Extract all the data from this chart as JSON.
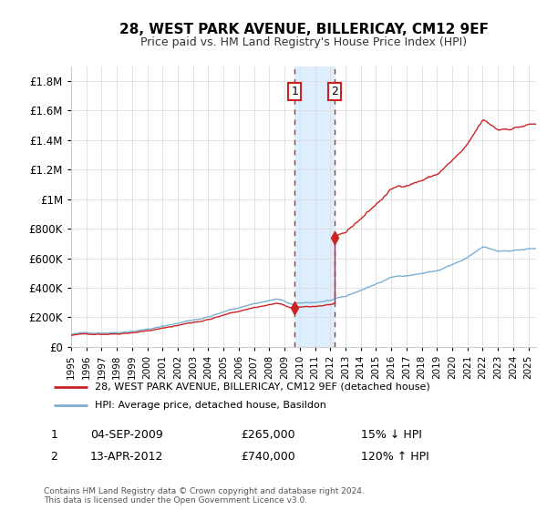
{
  "title": "28, WEST PARK AVENUE, BILLERICAY, CM12 9EF",
  "subtitle": "Price paid vs. HM Land Registry's House Price Index (HPI)",
  "legend_line1": "28, WEST PARK AVENUE, BILLERICAY, CM12 9EF (detached house)",
  "legend_line2": "HPI: Average price, detached house, Basildon",
  "sale1_date": "04-SEP-2009",
  "sale1_price": 265000,
  "sale1_label": "15% ↓ HPI",
  "sale2_date": "13-APR-2012",
  "sale2_price": 740000,
  "sale2_label": "120% ↑ HPI",
  "footer": "Contains HM Land Registry data © Crown copyright and database right 2024.\nThis data is licensed under the Open Government Licence v3.0.",
  "hpi_color": "#7ab0d4",
  "price_color": "#cc2222",
  "highlight_color": "#ddeeff",
  "background_color": "#ffffff",
  "grid_color": "#dddddd",
  "sale1_x": 2009.67,
  "sale2_x": 2012.28,
  "ylim_max": 1900000
}
